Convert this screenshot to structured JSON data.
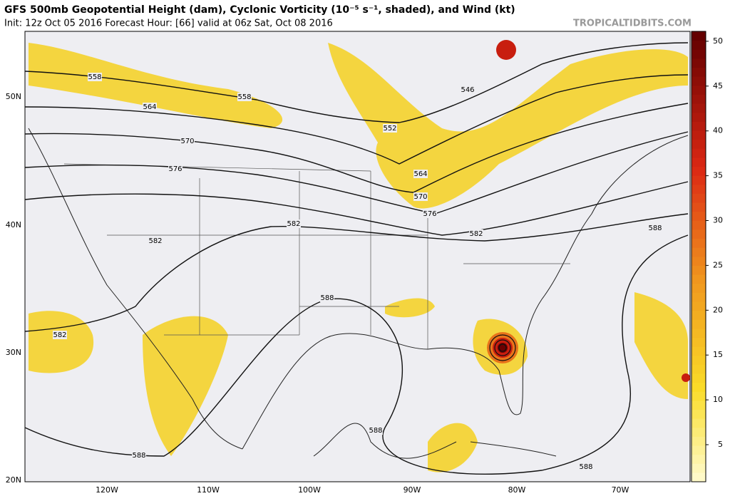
{
  "header": {
    "title": "GFS 500mb Geopotential Height (dam), Cyclonic Vorticity (10⁻⁵ s⁻¹, shaded), and Wind (kt)",
    "subtitle": "Init: 12z Oct 05 2016   Forecast Hour: [66]   valid at 06z Sat, Oct 08 2016",
    "credit": "TROPICALTIDBITS.COM"
  },
  "map": {
    "lat_labels": [
      "50N",
      "40N",
      "30N",
      "20N"
    ],
    "lon_labels": [
      "120W",
      "110W",
      "100W",
      "90W",
      "80W",
      "70W"
    ],
    "contour_labels": [
      "558",
      "558",
      "564",
      "570",
      "576",
      "582",
      "582",
      "582",
      "588",
      "588",
      "588",
      "546",
      "552",
      "564",
      "570",
      "576",
      "582",
      "588",
      "588"
    ]
  },
  "colorbar": {
    "ticks": [
      5,
      10,
      15,
      20,
      25,
      30,
      35,
      40,
      45,
      50
    ]
  }
}
